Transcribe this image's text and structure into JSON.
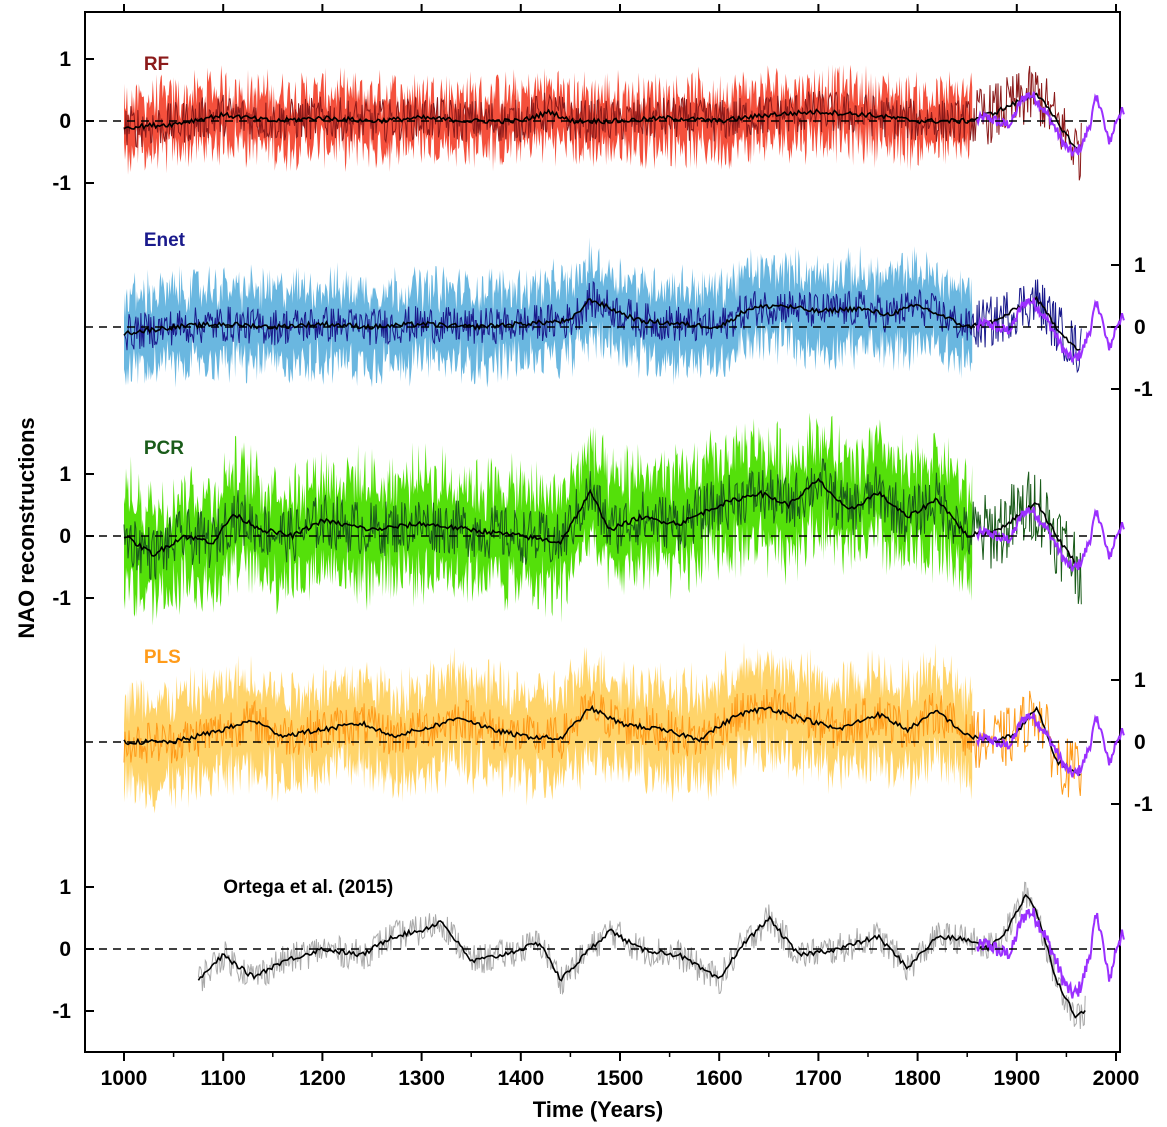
{
  "chart_data": {
    "type": "line",
    "xlabel": "Time (Years)",
    "ylabel": "NAO reconstructions",
    "xlim": [
      1000,
      2000
    ],
    "xticks": [
      "1000",
      "1100",
      "1200",
      "1300",
      "1400",
      "1500",
      "1600",
      "1700",
      "1800",
      "1900",
      "2000"
    ],
    "observed_series_color": "#9b30ff",
    "panels": [
      {
        "name": "RF",
        "label_color": "#8b1a1a",
        "axis_side": "left",
        "yticks": [
          "1",
          "0",
          "-1"
        ],
        "band_color": "#f4503c",
        "annual_color": "#8b1a1a",
        "band_halfwidth": 0.45,
        "annual_amplitude": 0.35,
        "range": [
          1000,
          1855
        ],
        "annual_range": [
          1000,
          1965
        ],
        "smooth_anchor_x": [
          1000,
          1050,
          1100,
          1150,
          1200,
          1250,
          1300,
          1350,
          1400,
          1430,
          1450,
          1500,
          1550,
          1600,
          1650,
          1700,
          1750,
          1800,
          1850,
          1880,
          1900,
          1920,
          1940,
          1960,
          1965
        ],
        "smooth_anchor_y": [
          -0.1,
          -0.05,
          0.1,
          0.0,
          0.05,
          0.0,
          0.05,
          0.0,
          0.0,
          0.15,
          0.0,
          0.0,
          0.05,
          0.0,
          0.1,
          0.15,
          0.1,
          0.0,
          0.0,
          0.15,
          0.3,
          0.45,
          0.0,
          -0.45,
          -0.5
        ]
      },
      {
        "name": "Enet",
        "label_color": "#1a1a8c",
        "axis_side": "right",
        "yticks": [
          "1",
          "0",
          "-1"
        ],
        "band_color": "#6ab7e0",
        "annual_color": "#1a1a8c",
        "band_halfwidth": 0.65,
        "annual_amplitude": 0.3,
        "range": [
          1000,
          1855
        ],
        "annual_range": [
          1000,
          1965
        ],
        "smooth_anchor_x": [
          1000,
          1050,
          1100,
          1150,
          1200,
          1250,
          1300,
          1350,
          1400,
          1450,
          1470,
          1490,
          1520,
          1560,
          1600,
          1630,
          1660,
          1700,
          1740,
          1770,
          1800,
          1850,
          1880,
          1900,
          1920,
          1940,
          1960,
          1965
        ],
        "smooth_anchor_y": [
          -0.1,
          0.0,
          0.05,
          0.0,
          0.05,
          0.0,
          0.05,
          0.0,
          0.05,
          0.1,
          0.45,
          0.3,
          0.1,
          0.05,
          0.0,
          0.3,
          0.35,
          0.25,
          0.3,
          0.2,
          0.35,
          0.0,
          0.1,
          0.3,
          0.45,
          0.0,
          -0.35,
          -0.4
        ]
      },
      {
        "name": "PCR",
        "label_color": "#1a5c1a",
        "axis_side": "left",
        "yticks": [
          "1",
          "0",
          "-1"
        ],
        "band_color": "#54e00a",
        "annual_color": "#1a5c1a",
        "band_halfwidth": 0.8,
        "annual_amplitude": 0.45,
        "range": [
          1000,
          1855
        ],
        "annual_range": [
          1000,
          1965
        ],
        "smooth_anchor_x": [
          1000,
          1030,
          1060,
          1090,
          1110,
          1140,
          1170,
          1200,
          1250,
          1300,
          1350,
          1400,
          1440,
          1470,
          1490,
          1520,
          1560,
          1600,
          1640,
          1670,
          1700,
          1730,
          1760,
          1790,
          1820,
          1850,
          1880,
          1900,
          1920,
          1940,
          1960,
          1965
        ],
        "smooth_anchor_y": [
          0.0,
          -0.3,
          0.0,
          -0.1,
          0.35,
          0.1,
          0.0,
          0.25,
          0.1,
          0.2,
          0.1,
          0.0,
          -0.1,
          0.7,
          0.1,
          0.3,
          0.2,
          0.5,
          0.7,
          0.5,
          0.9,
          0.4,
          0.7,
          0.3,
          0.6,
          0.0,
          0.1,
          0.3,
          0.55,
          0.0,
          -0.45,
          -0.5
        ]
      },
      {
        "name": "PLS",
        "label_color": "#ff9b1a",
        "axis_side": "right",
        "yticks": [
          "1",
          "0",
          "-1"
        ],
        "band_color": "#ffd46a",
        "annual_color": "#ff9b1a",
        "band_halfwidth": 0.75,
        "annual_amplitude": 0.35,
        "range": [
          1000,
          1855
        ],
        "annual_range": [
          1000,
          1965
        ],
        "smooth_anchor_x": [
          1000,
          1050,
          1100,
          1130,
          1160,
          1200,
          1240,
          1270,
          1300,
          1340,
          1370,
          1400,
          1440,
          1470,
          1500,
          1540,
          1580,
          1620,
          1650,
          1690,
          1720,
          1760,
          1790,
          1820,
          1850,
          1880,
          1900,
          1920,
          1940,
          1960,
          1965
        ],
        "smooth_anchor_y": [
          0.0,
          0.0,
          0.2,
          0.35,
          0.1,
          0.2,
          0.3,
          0.1,
          0.2,
          0.4,
          0.2,
          0.1,
          0.05,
          0.55,
          0.3,
          0.2,
          0.05,
          0.45,
          0.55,
          0.35,
          0.2,
          0.45,
          0.2,
          0.5,
          0.1,
          0.0,
          0.15,
          0.55,
          -0.3,
          -0.5,
          -0.55
        ]
      },
      {
        "name": "Ortega et al. (2015)",
        "label_color": "#000000",
        "axis_side": "left",
        "yticks": [
          "1",
          "0",
          "-1"
        ],
        "band_color": "none",
        "annual_color": "#aaaaaa",
        "band_halfwidth": 0,
        "annual_amplitude": 0.25,
        "range": [
          1075,
          1969
        ],
        "annual_range": [
          1075,
          1969
        ],
        "smooth_anchor_x": [
          1075,
          1100,
          1130,
          1160,
          1200,
          1240,
          1270,
          1300,
          1320,
          1350,
          1380,
          1420,
          1440,
          1470,
          1490,
          1520,
          1560,
          1600,
          1620,
          1650,
          1680,
          1720,
          1760,
          1790,
          1820,
          1850,
          1870,
          1890,
          1910,
          1920,
          1940,
          1960,
          1969
        ],
        "smooth_anchor_y": [
          -0.5,
          -0.1,
          -0.45,
          -0.2,
          0.0,
          -0.1,
          0.2,
          0.3,
          0.45,
          -0.2,
          -0.1,
          0.1,
          -0.5,
          0.0,
          0.3,
          0.0,
          -0.1,
          -0.5,
          0.0,
          0.5,
          -0.1,
          0.0,
          0.2,
          -0.3,
          0.2,
          0.15,
          0.0,
          0.3,
          0.9,
          0.6,
          -0.5,
          -1.1,
          -1.0
        ]
      }
    ]
  }
}
